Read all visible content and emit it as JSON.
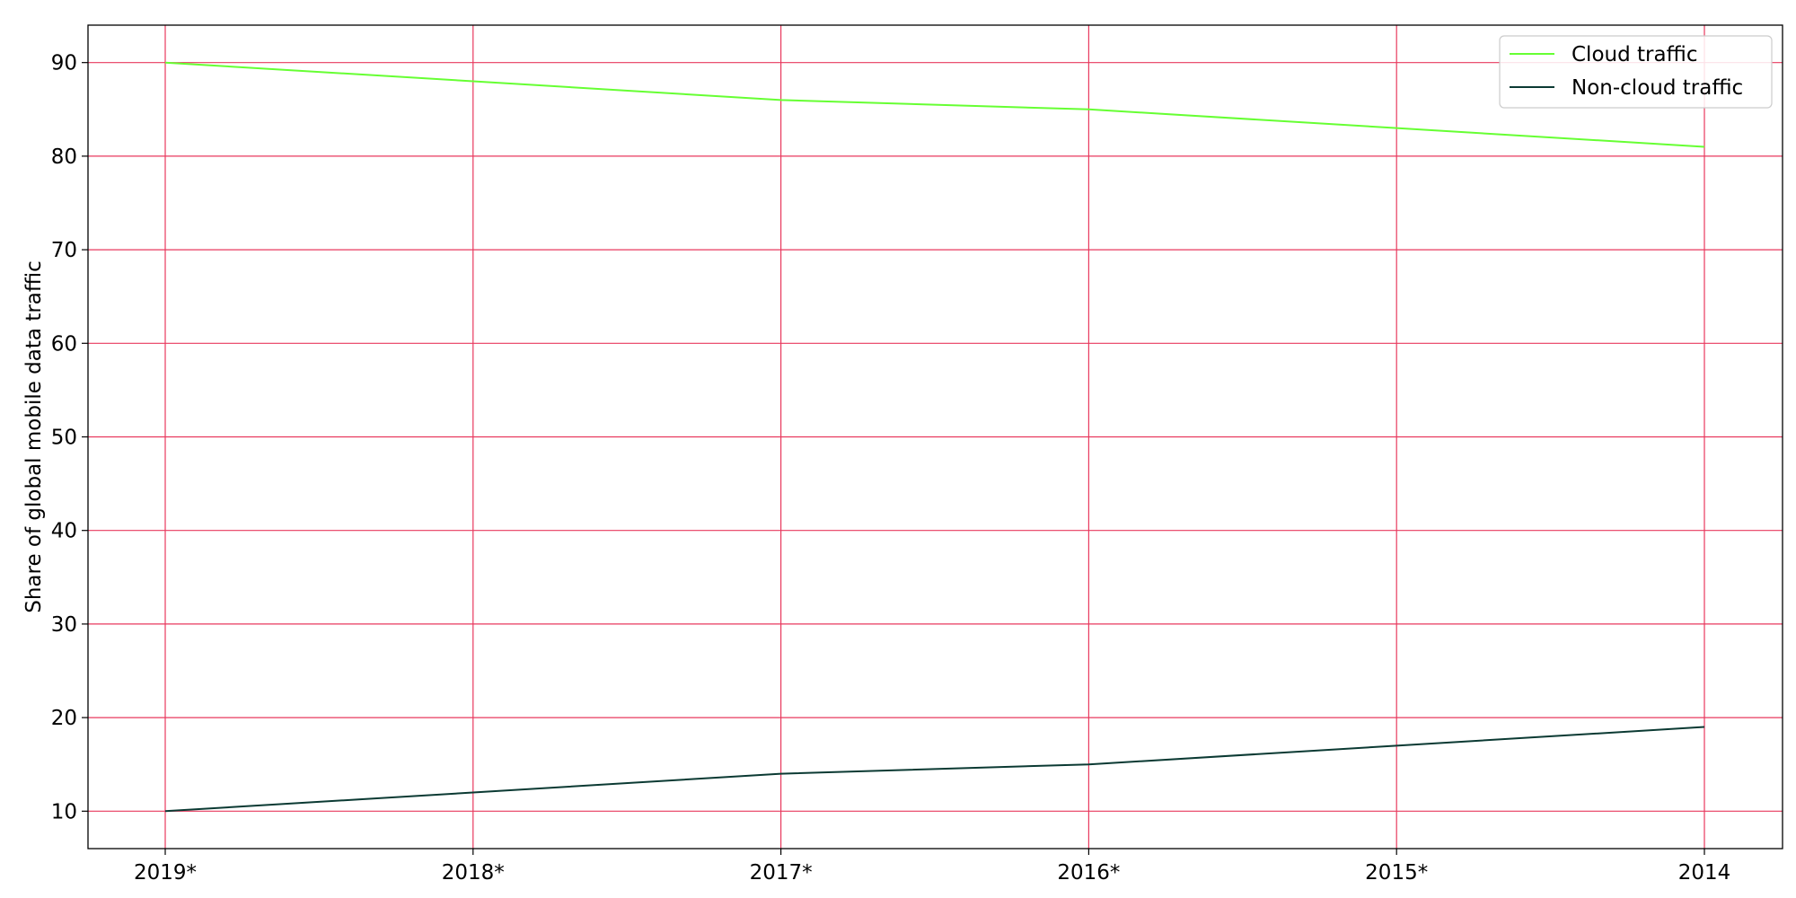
{
  "chart_data": {
    "type": "line",
    "title": "",
    "xlabel": "",
    "ylabel": "Share of global mobile data traffic",
    "categories": [
      "2019*",
      "2018*",
      "2017*",
      "2016*",
      "2015*",
      "2014"
    ],
    "series": [
      {
        "name": "Cloud traffic",
        "color": "#66ff33",
        "values": [
          90,
          88,
          86,
          85,
          83,
          81
        ]
      },
      {
        "name": "Non-cloud traffic",
        "color": "#0b3a33",
        "values": [
          10,
          12,
          14,
          15,
          17,
          19
        ]
      }
    ],
    "yticks": [
      10,
      20,
      30,
      40,
      50,
      60,
      70,
      80,
      90
    ],
    "ylim": [
      6,
      94
    ],
    "grid": true,
    "grid_color": "#e8395e",
    "legend_position": "top-right"
  }
}
